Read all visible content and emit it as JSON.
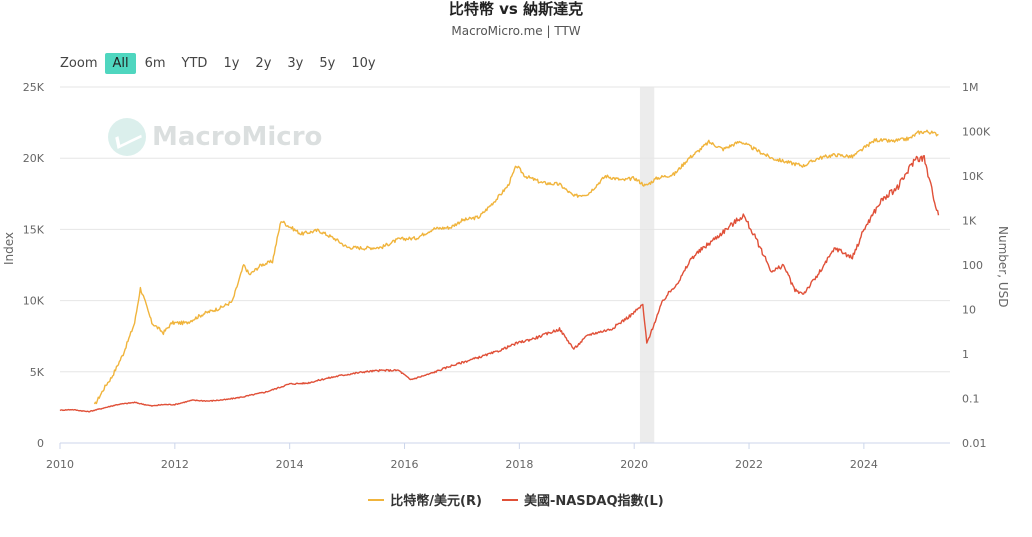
{
  "header": {
    "title": "比特幣 vs 納斯達克",
    "subtitle": "MacroMicro.me | TTW"
  },
  "zoom": {
    "label": "Zoom",
    "buttons": [
      "All",
      "6m",
      "YTD",
      "1y",
      "2y",
      "3y",
      "5y",
      "10y"
    ],
    "active": "All"
  },
  "watermark": "MacroMicro",
  "chart_data": {
    "type": "line",
    "title": "比特幣 vs 納斯達克",
    "subtitle": "MacroMicro.me | TTW",
    "ylabel_left": "Index",
    "ylabel_right": "Number, USD",
    "x_ticks": [
      "2010",
      "2012",
      "2014",
      "2016",
      "2018",
      "2020",
      "2022",
      "2024"
    ],
    "y_left_ticks": [
      "0",
      "5K",
      "10K",
      "15K",
      "20K",
      "25K"
    ],
    "y_left_range": [
      0,
      25000
    ],
    "y_right_ticks": [
      "0.01",
      "0.1",
      "1",
      "10",
      "100",
      "1K",
      "10K",
      "100K",
      "1M"
    ],
    "y_right_range": [
      0.01,
      1000000
    ],
    "y_right_scale": "log",
    "grid": true,
    "legend_position": "bottom-center",
    "shaded_region": {
      "x_start": 2020.1,
      "x_end": 2020.35
    },
    "series": [
      {
        "name": "比特幣/美元(R)",
        "axis": "right",
        "color": "#f0b43c",
        "x": [
          2010.6,
          2010.8,
          2010.9,
          2011.1,
          2011.3,
          2011.4,
          2011.45,
          2011.6,
          2011.8,
          2011.95,
          2012.2,
          2012.5,
          2012.8,
          2013.0,
          2013.2,
          2013.3,
          2013.5,
          2013.7,
          2013.85,
          2013.95,
          2014.2,
          2014.5,
          2014.8,
          2015.0,
          2015.3,
          2015.6,
          2015.9,
          2016.2,
          2016.5,
          2016.8,
          2017.0,
          2017.3,
          2017.6,
          2017.8,
          2017.95,
          2018.1,
          2018.4,
          2018.7,
          2018.95,
          2019.2,
          2019.5,
          2019.8,
          2020.0,
          2020.2,
          2020.4,
          2020.7,
          2020.95,
          2021.1,
          2021.3,
          2021.55,
          2021.85,
          2022.1,
          2022.4,
          2022.7,
          2022.95,
          2023.2,
          2023.5,
          2023.8,
          2024.0,
          2024.2,
          2024.5,
          2024.8,
          2024.95,
          2025.1,
          2025.3
        ],
        "values": [
          0.07,
          0.2,
          0.3,
          1,
          5,
          30,
          20,
          5,
          3,
          5,
          5,
          8,
          11,
          15,
          100,
          60,
          100,
          120,
          1000,
          800,
          500,
          600,
          380,
          250,
          240,
          250,
          380,
          400,
          650,
          700,
          1000,
          1200,
          3000,
          6000,
          17000,
          10000,
          7000,
          6500,
          3500,
          4000,
          10000,
          8000,
          9000,
          6000,
          9000,
          11000,
          25000,
          35000,
          58000,
          40000,
          60000,
          40000,
          25000,
          20000,
          17000,
          25000,
          30000,
          27000,
          42000,
          65000,
          60000,
          70000,
          95000,
          100000,
          85000
        ]
      },
      {
        "name": "美國-NASDAQ指數(L)",
        "axis": "left",
        "color": "#e05038",
        "x": [
          2010.0,
          2010.2,
          2010.5,
          2010.8,
          2011.0,
          2011.3,
          2011.6,
          2011.8,
          2012.0,
          2012.3,
          2012.6,
          2012.9,
          2013.2,
          2013.6,
          2014.0,
          2014.3,
          2014.6,
          2014.9,
          2015.3,
          2015.6,
          2015.9,
          2016.1,
          2016.4,
          2016.8,
          2017.2,
          2017.6,
          2017.95,
          2018.3,
          2018.7,
          2018.95,
          2019.2,
          2019.6,
          2019.95,
          2020.15,
          2020.22,
          2020.5,
          2020.8,
          2021.0,
          2021.3,
          2021.6,
          2021.9,
          2022.1,
          2022.4,
          2022.6,
          2022.8,
          2022.95,
          2023.2,
          2023.5,
          2023.8,
          2024.0,
          2024.3,
          2024.6,
          2024.9,
          2025.05,
          2025.2,
          2025.3
        ],
        "values": [
          2300,
          2350,
          2200,
          2500,
          2700,
          2850,
          2600,
          2700,
          2700,
          3000,
          2950,
          3050,
          3250,
          3600,
          4150,
          4200,
          4500,
          4750,
          5000,
          5100,
          5100,
          4450,
          4800,
          5400,
          5900,
          6400,
          7000,
          7400,
          8000,
          6600,
          7600,
          8000,
          9000,
          9700,
          7000,
          10000,
          11500,
          13000,
          14000,
          15000,
          16000,
          14500,
          12000,
          12500,
          10700,
          10500,
          11800,
          13700,
          13000,
          15000,
          17000,
          18000,
          20000,
          20000,
          17500,
          16000
        ]
      }
    ]
  },
  "legend": [
    {
      "label": "比特幣/美元(R)",
      "color": "#f0b43c"
    },
    {
      "label": "美國-NASDAQ指數(L)",
      "color": "#e05038"
    }
  ]
}
